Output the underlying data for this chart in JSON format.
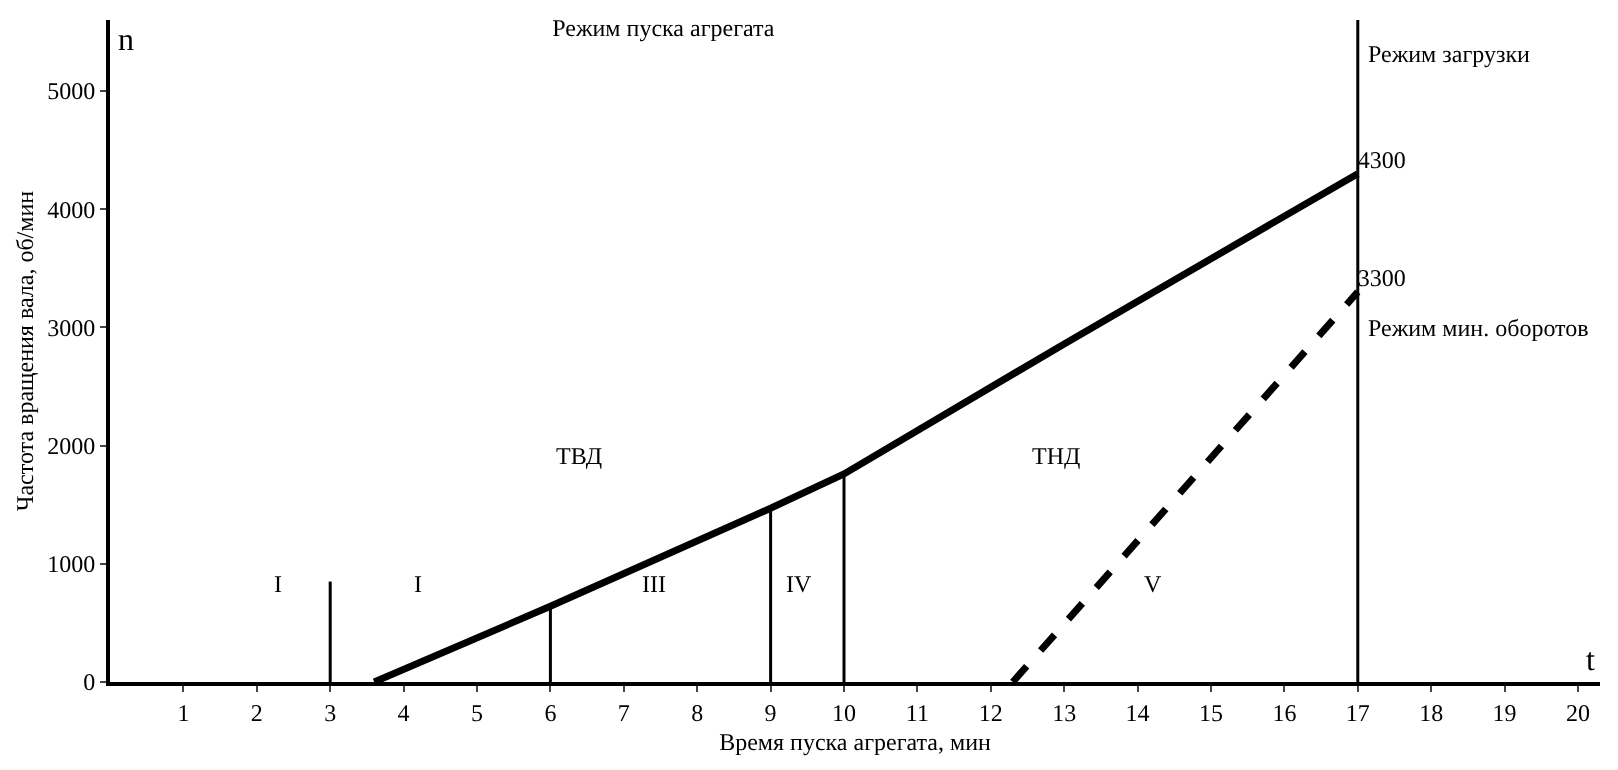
{
  "chart_data": {
    "type": "line",
    "title": "Режим пуска агрегата",
    "xlabel": "Время пуска агрегата, мин",
    "ylabel": "Частота вращения вала, об/мин",
    "xlim": [
      0,
      20.3
    ],
    "xticks": [
      1,
      2,
      3,
      4,
      5,
      6,
      7,
      8,
      9,
      10,
      11,
      12,
      13,
      14,
      15,
      16,
      17,
      18,
      19,
      20
    ],
    "ylim": [
      0,
      5600
    ],
    "yticks": [
      0,
      1000,
      2000,
      3000,
      4000,
      5000
    ],
    "marker": "none",
    "series": [
      {
        "color": "#000000",
        "line_style": "solid",
        "x": [
          3.6,
          6,
          9,
          10,
          13,
          17
        ],
        "values": [
          0,
          640,
          1470,
          1760,
          2860,
          4300
        ],
        "value_labels": [
          null,
          null,
          null,
          null,
          null,
          "4300"
        ]
      },
      {
        "color": "#000000",
        "line_style": "dashed",
        "x": [
          12.3,
          17
        ],
        "values": [
          0,
          3300
        ],
        "value_labels": [
          null,
          "3300"
        ]
      },
      {
        "color": "#000000",
        "line_style": "solid",
        "x": [
          3,
          3
        ],
        "values": [
          0,
          850
        ]
      },
      {
        "color": "#000000",
        "line_style": "solid",
        "x": [
          6,
          6
        ],
        "values": [
          0,
          640
        ]
      },
      {
        "color": "#000000",
        "line_style": "solid",
        "x": [
          9,
          9
        ],
        "values": [
          0,
          1470
        ]
      },
      {
        "color": "#000000",
        "line_style": "solid",
        "x": [
          10,
          10
        ],
        "values": [
          0,
          1760
        ]
      }
    ],
    "ref_lines": [
      {
        "axis": "x",
        "value": 17,
        "color": "#000000",
        "line_style": "solid"
      }
    ],
    "annotations": [
      "n",
      "t",
      "I",
      "I",
      "III",
      "IV",
      "V",
      "ТВД",
      "ТНД",
      "Режим загрузки",
      "Режим мин. оборотов"
    ]
  }
}
